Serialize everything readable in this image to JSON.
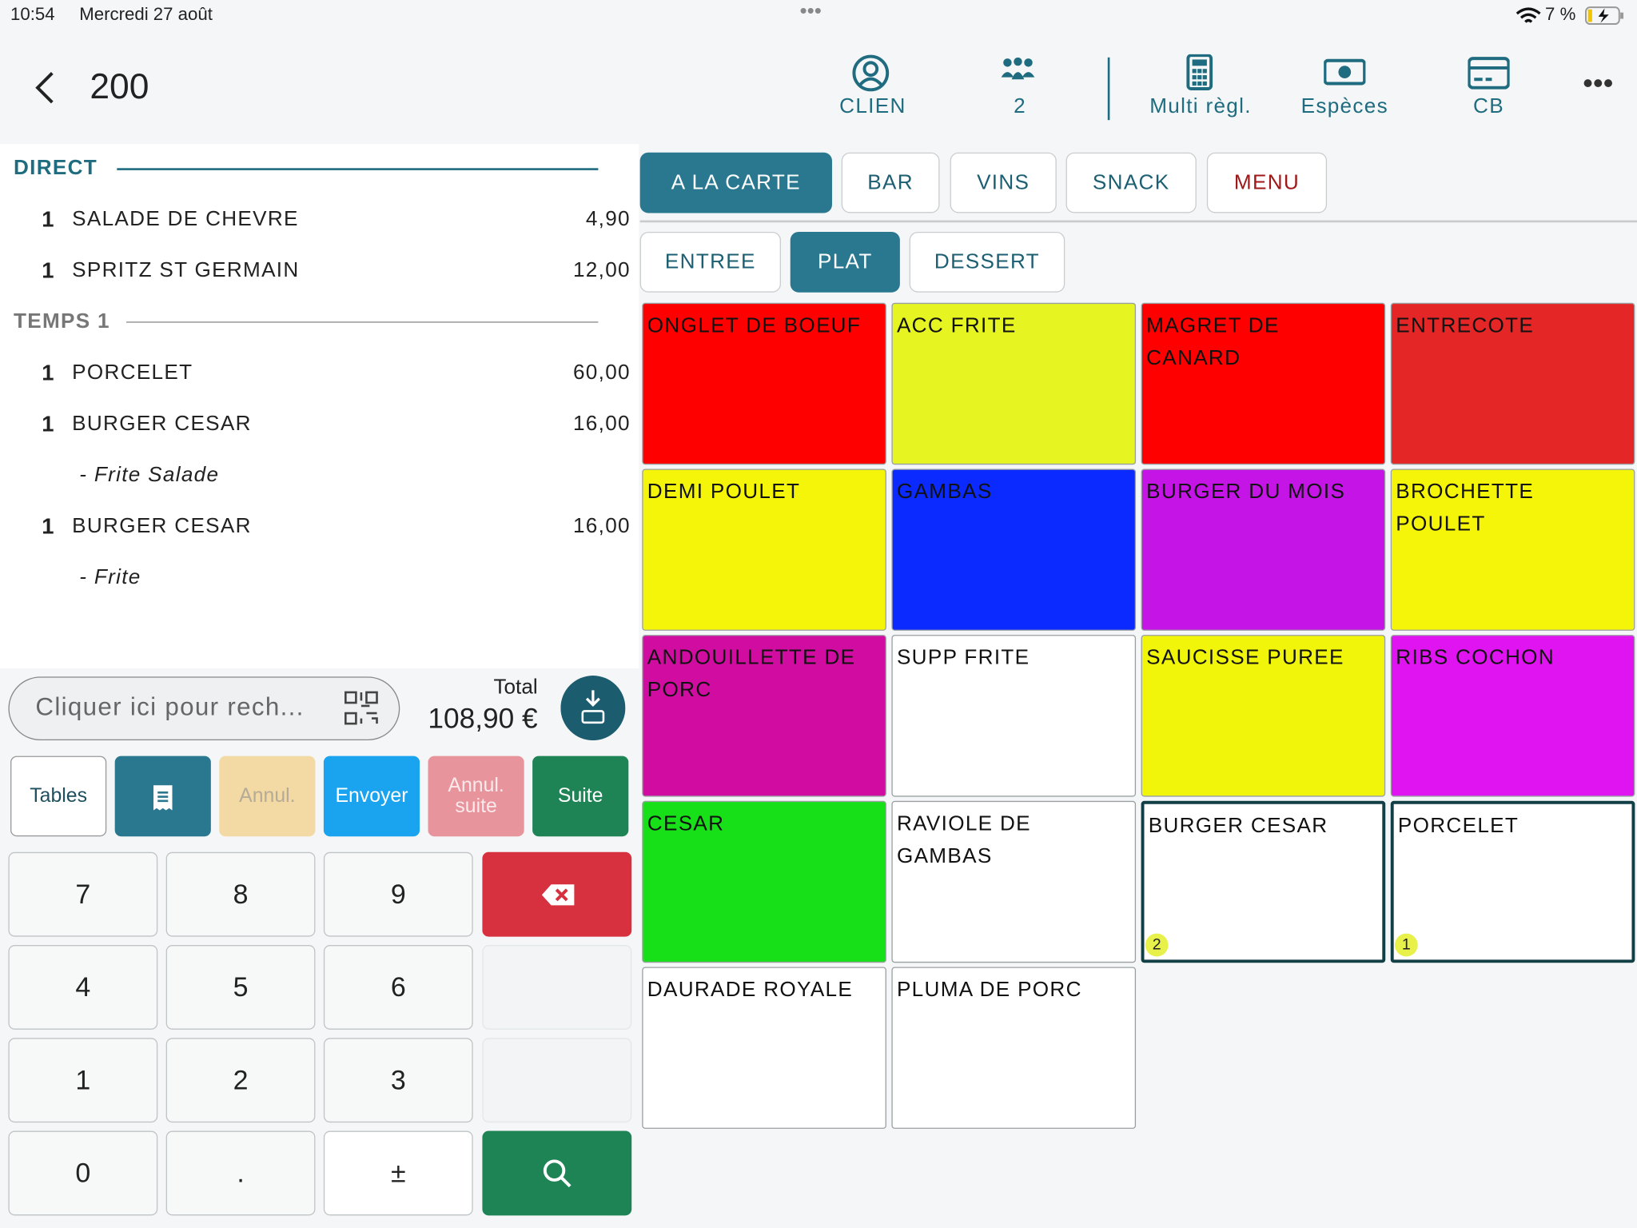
{
  "status": {
    "time": "10:54",
    "date": "Mercredi 27 août",
    "battery": "7 %"
  },
  "header": {
    "table": "200",
    "actions": [
      "CLIEN",
      "2",
      "Multi règl.",
      "Espèces",
      "CB"
    ]
  },
  "order": {
    "sections": [
      {
        "name": "DIRECT",
        "items": [
          {
            "qty": "1",
            "name": "SALADE DE CHEVRE",
            "price": "4,90"
          },
          {
            "qty": "1",
            "name": "SPRITZ ST GERMAIN",
            "price": "12,00"
          }
        ]
      },
      {
        "name": "TEMPS 1",
        "items": [
          {
            "qty": "1",
            "name": "PORCELET",
            "price": "60,00"
          },
          {
            "qty": "1",
            "name": "BURGER CESAR",
            "price": "16,00",
            "option": "- Frite Salade"
          },
          {
            "qty": "1",
            "name": "BURGER CESAR",
            "price": "16,00",
            "option": "- Frite"
          }
        ]
      }
    ]
  },
  "search": {
    "placeholder": "Cliquer ici pour rech...",
    "total_label": "Total",
    "total": "108,90 €"
  },
  "buttons": [
    "Tables",
    "Annul.",
    "Envoyer",
    "Annul.\nsuite",
    "Suite"
  ],
  "keypad": [
    "7",
    "8",
    "9",
    "4",
    "5",
    "6",
    "1",
    "2",
    "3",
    "0",
    ".",
    "±"
  ],
  "tabs": {
    "categories": [
      "A LA CARTE",
      "BAR",
      "VINS",
      "SNACK",
      "MENU"
    ],
    "subcategories": [
      "ENTREE",
      "PLAT",
      "DESSERT"
    ]
  },
  "products": [
    {
      "name": "ONGLET DE BOEUF",
      "color": "#ff0000"
    },
    {
      "name": "ACC FRITE",
      "color": "#e6f522"
    },
    {
      "name": "MAGRET DE CANARD",
      "color": "#ff0000"
    },
    {
      "name": "ENTRECOTE",
      "color": "#e52626"
    },
    {
      "name": "DEMI POULET",
      "color": "#f5f50a"
    },
    {
      "name": "GAMBAS",
      "color": "#0a2aff"
    },
    {
      "name": "BURGER DU MOIS",
      "color": "#c415e6"
    },
    {
      "name": "BROCHETTE POULET",
      "color": "#f5f50a"
    },
    {
      "name": "ANDOUILLETTE DE PORC",
      "color": "#d10ca0"
    },
    {
      "name": "SUPP FRITE",
      "color": "#ffffff"
    },
    {
      "name": "SAUCISSE PUREE",
      "color": "#f0f50a"
    },
    {
      "name": "RIBS COCHON",
      "color": "#e014f0"
    },
    {
      "name": "CESAR",
      "color": "#18e018"
    },
    {
      "name": "RAVIOLE DE GAMBAS",
      "color": "#ffffff"
    },
    {
      "name": "BURGER CESAR",
      "color": "#ffffff",
      "badge": "2"
    },
    {
      "name": "PORCELET",
      "color": "#ffffff",
      "badge": "1"
    },
    {
      "name": "DAURADE ROYALE",
      "color": "#ffffff"
    },
    {
      "name": "PLUMA DE PORC",
      "color": "#ffffff"
    }
  ]
}
